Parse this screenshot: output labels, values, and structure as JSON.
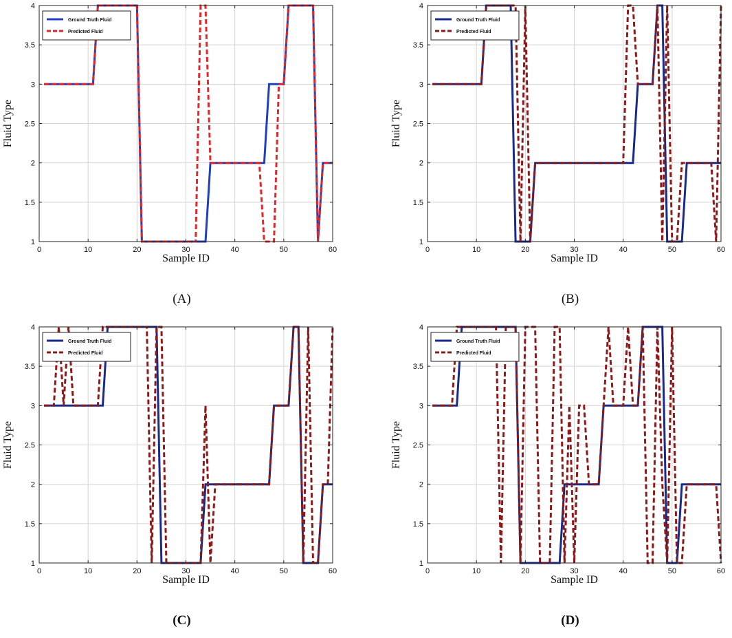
{
  "chart_data": [
    {
      "type": "line",
      "caption": "(A)",
      "caption_bold": false,
      "xlabel": "Sample ID",
      "ylabel": "Fluid Type",
      "xlim": [
        0,
        60
      ],
      "ylim": [
        1,
        4
      ],
      "xticks": [
        0,
        10,
        20,
        30,
        40,
        50,
        60
      ],
      "yticks": [
        1,
        1.5,
        2,
        2.5,
        3,
        3.5,
        4
      ],
      "ytick_labels": [
        "1",
        "1.5",
        "2",
        "2.5",
        "3",
        "3.5",
        "4"
      ],
      "grid": true,
      "legend": "top-left",
      "series": [
        {
          "name": "Ground Truth Fluid",
          "color": "#1f3fbf",
          "style": "solid",
          "x": [
            1,
            11,
            12,
            20,
            21,
            34,
            35,
            46,
            47,
            50,
            51,
            56,
            57,
            58,
            60
          ],
          "y": [
            3,
            3,
            4,
            4,
            1,
            1,
            2,
            2,
            3,
            3,
            4,
            4,
            1,
            2,
            2
          ]
        },
        {
          "name": "Predicted Fluid",
          "color": "#e0282a",
          "style": "dashed",
          "x": [
            1,
            11,
            12,
            20,
            21,
            32,
            33,
            34,
            35,
            45,
            46,
            47,
            48,
            49,
            50,
            51,
            56,
            57,
            58,
            60
          ],
          "y": [
            3,
            3,
            4,
            4,
            1,
            1,
            4,
            4,
            2,
            2,
            1,
            1,
            1,
            3,
            3,
            4,
            4,
            1,
            2,
            2
          ]
        }
      ]
    },
    {
      "type": "line",
      "caption": "(B)",
      "caption_bold": false,
      "xlabel": "Sample ID",
      "ylabel": "Fluid Type",
      "xlim": [
        0,
        60
      ],
      "ylim": [
        1,
        4
      ],
      "xticks": [
        0,
        10,
        20,
        30,
        40,
        50,
        60
      ],
      "yticks": [
        1,
        1.5,
        2,
        2.5,
        3,
        3.5,
        4
      ],
      "ytick_labels": [
        "1",
        "1.5",
        "2",
        "2.5",
        "3",
        "3.5",
        "4"
      ],
      "grid": true,
      "legend": "top-left",
      "series": [
        {
          "name": "Ground Truth Fluid",
          "color": "#1a2a8c",
          "style": "solid",
          "x": [
            1,
            11,
            12,
            17,
            18,
            21,
            22,
            42,
            43,
            46,
            47,
            48,
            49,
            52,
            53,
            60
          ],
          "y": [
            3,
            3,
            4,
            4,
            1,
            1,
            2,
            2,
            3,
            3,
            4,
            4,
            1,
            1,
            2,
            2
          ]
        },
        {
          "name": "Predicted Fluid",
          "color": "#8b1a1a",
          "style": "dashed",
          "x": [
            1,
            11,
            12,
            18,
            19,
            20,
            21,
            22,
            40,
            41,
            42,
            43,
            46,
            47,
            48,
            49,
            50,
            51,
            52,
            53,
            58,
            59,
            60
          ],
          "y": [
            3,
            3,
            4,
            4,
            1,
            4,
            1,
            2,
            2,
            4,
            4,
            3,
            3,
            4,
            1,
            4,
            1,
            1,
            2,
            2,
            2,
            1,
            4
          ]
        }
      ]
    },
    {
      "type": "line",
      "caption": "(C)",
      "caption_bold": true,
      "xlabel": "Sample ID",
      "ylabel": "Fluid Type",
      "xlim": [
        0,
        60
      ],
      "ylim": [
        1,
        4
      ],
      "xticks": [
        0,
        10,
        20,
        30,
        40,
        50,
        60
      ],
      "yticks": [
        1,
        1.5,
        2,
        2.5,
        3,
        3.5,
        4
      ],
      "ytick_labels": [
        "1",
        "1.5",
        "2",
        "2.5",
        "3",
        "3.5",
        "4"
      ],
      "grid": true,
      "legend": "top-left",
      "series": [
        {
          "name": "Ground Truth Fluid",
          "color": "#1a2a8c",
          "style": "solid",
          "x": [
            1,
            13,
            14,
            24,
            25,
            33,
            34,
            47,
            48,
            51,
            52,
            53,
            54,
            57,
            58,
            60
          ],
          "y": [
            3,
            3,
            4,
            4,
            1,
            1,
            2,
            2,
            3,
            3,
            4,
            4,
            1,
            1,
            2,
            2
          ]
        },
        {
          "name": "Predicted Fluid",
          "color": "#8b1a1a",
          "style": "dashed",
          "x": [
            1,
            3,
            4,
            5,
            6,
            7,
            8,
            9,
            10,
            11,
            12,
            13,
            14,
            15,
            16,
            22,
            23,
            24,
            25,
            26,
            27,
            33,
            34,
            35,
            36,
            47,
            48,
            51,
            52,
            53,
            54,
            55,
            56,
            57,
            58,
            59,
            60
          ],
          "y": [
            3,
            3,
            4,
            3,
            4,
            3,
            3,
            3,
            3,
            3,
            3,
            4,
            4,
            4,
            4,
            4,
            1,
            4,
            4,
            1,
            1,
            1,
            3,
            1,
            2,
            2,
            3,
            3,
            4,
            4,
            1,
            4,
            1,
            1,
            2,
            2,
            4
          ]
        }
      ]
    },
    {
      "type": "line",
      "caption": "(D)",
      "caption_bold": true,
      "xlabel": "Sample ID",
      "ylabel": "Fluid Type",
      "xlim": [
        0,
        60
      ],
      "ylim": [
        1,
        4
      ],
      "xticks": [
        0,
        10,
        20,
        30,
        40,
        50,
        60
      ],
      "yticks": [
        1,
        1.5,
        2,
        2.5,
        3,
        3.5,
        4
      ],
      "ytick_labels": [
        "1",
        "1.5",
        "2",
        "2.5",
        "3",
        "3.5",
        "4"
      ],
      "grid": true,
      "legend": "top-left",
      "series": [
        {
          "name": "Ground Truth Fluid",
          "color": "#1a2a8c",
          "style": "solid",
          "x": [
            1,
            6,
            7,
            18,
            19,
            27,
            28,
            35,
            36,
            43,
            44,
            48,
            49,
            51,
            52,
            60
          ],
          "y": [
            3,
            3,
            4,
            4,
            1,
            1,
            2,
            2,
            3,
            3,
            4,
            4,
            1,
            1,
            2,
            2
          ]
        },
        {
          "name": "Predicted Fluid",
          "color": "#8b1a1a",
          "style": "dashed",
          "x": [
            1,
            5,
            6,
            7,
            14,
            15,
            16,
            17,
            18,
            19,
            20,
            21,
            22,
            23,
            25,
            26,
            27,
            28,
            29,
            30,
            31,
            32,
            33,
            35,
            36,
            37,
            38,
            40,
            41,
            42,
            43,
            44,
            45,
            46,
            47,
            48,
            49,
            50,
            51,
            52,
            53,
            59,
            60
          ],
          "y": [
            3,
            3,
            4,
            4,
            4,
            1,
            4,
            4,
            4,
            1,
            4,
            4,
            4,
            1,
            1,
            4,
            4,
            1,
            3,
            1,
            3,
            3,
            2,
            2,
            3,
            4,
            3,
            3,
            4,
            3,
            3,
            4,
            1,
            1,
            4,
            2,
            1,
            4,
            1,
            1,
            2,
            2,
            1
          ]
        }
      ]
    }
  ]
}
